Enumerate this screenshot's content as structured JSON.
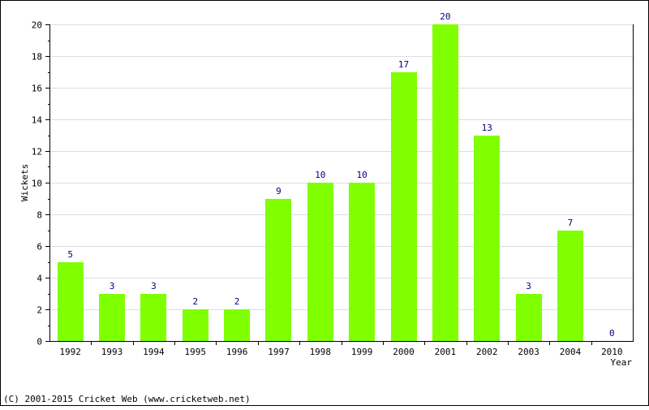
{
  "chart_data": {
    "type": "bar",
    "title": "",
    "xlabel": "Year",
    "ylabel": "Wickets",
    "categories": [
      "1992",
      "1993",
      "1994",
      "1995",
      "1996",
      "1997",
      "1998",
      "1999",
      "2000",
      "2001",
      "2002",
      "2003",
      "2004",
      "2010"
    ],
    "values": [
      5,
      3,
      3,
      2,
      2,
      9,
      10,
      10,
      17,
      20,
      13,
      3,
      7,
      0
    ],
    "ylim": [
      0,
      20
    ],
    "yticks": [
      0,
      2,
      4,
      6,
      8,
      10,
      12,
      14,
      16,
      18,
      20
    ],
    "grid": true,
    "bar_color": "#7fff00",
    "label_color": "#000080"
  },
  "footer": {
    "copyright": "(C) 2001-2015 Cricket Web (www.cricketweb.net)"
  }
}
